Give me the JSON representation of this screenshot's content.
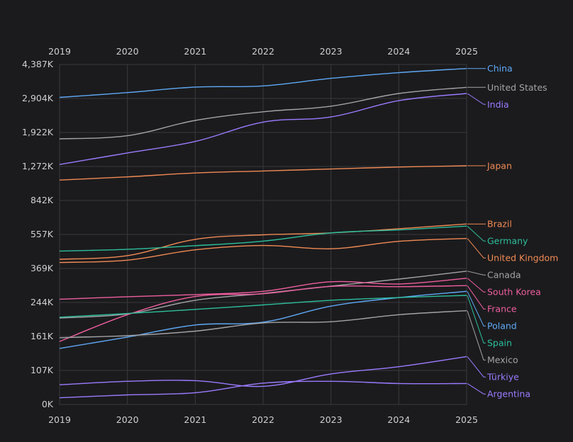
{
  "chart_data": {
    "type": "line",
    "title": "",
    "xlabel": "",
    "ylabel": "",
    "x": [
      2019,
      2020,
      2021,
      2022,
      2023,
      2024,
      2025
    ],
    "x_tick_labels": [
      "2019",
      "2020",
      "2021",
      "2022",
      "2023",
      "2024",
      "2025"
    ],
    "y_tick_labels": [
      "0K",
      "107K",
      "161K",
      "244K",
      "369K",
      "557K",
      "842K",
      "1,272K",
      "1,922K",
      "2,904K",
      "4,387K"
    ],
    "y_tick_values": [
      0,
      107,
      161,
      244,
      369,
      557,
      842,
      1272,
      1922,
      2904,
      4387
    ],
    "ylim": [
      0,
      4387
    ],
    "y_scale": "nonlinear (ticks evenly spaced)",
    "grid": true,
    "legend": "right end labels",
    "series": [
      {
        "name": "China",
        "color": "#5fa8f5",
        "values": [
          2950,
          3160,
          3400,
          3450,
          3780,
          4030,
          4210
        ]
      },
      {
        "name": "United States",
        "color": "#a3a3a8",
        "values": [
          1800,
          1860,
          2270,
          2520,
          2680,
          3120,
          3390
        ]
      },
      {
        "name": "India",
        "color": "#9b7bff",
        "values": [
          1310,
          1530,
          1750,
          2220,
          2370,
          2840,
          3120
        ]
      },
      {
        "name": "Japan",
        "color": "#f08a55",
        "values": [
          1100,
          1140,
          1190,
          1215,
          1240,
          1265,
          1285
        ]
      },
      {
        "name": "Brazil",
        "color": "#f08a55",
        "values": [
          420,
          440,
          530,
          555,
          570,
          605,
          645
        ]
      },
      {
        "name": "Germany",
        "color": "#2dbf9c",
        "values": [
          465,
          475,
          495,
          520,
          570,
          595,
          627
        ]
      },
      {
        "name": "United Kingdom",
        "color": "#f08a55",
        "values": [
          402,
          415,
          472,
          496,
          478,
          519,
          535
        ]
      },
      {
        "name": "Canada",
        "color": "#a3a3a8",
        "values": [
          206,
          216,
          252,
          277,
          304,
          330,
          359
        ]
      },
      {
        "name": "South Korea",
        "color": "#ee5e9f",
        "values": [
          256,
          265,
          273,
          285,
          320,
          312,
          333
        ]
      },
      {
        "name": "France",
        "color": "#ee5e9f",
        "values": [
          153,
          214,
          266,
          276,
          303,
          302,
          306
        ]
      },
      {
        "name": "Poland",
        "color": "#5fa8f5",
        "values": [
          142,
          160,
          189,
          196,
          235,
          262,
          285
        ]
      },
      {
        "name": "Spain",
        "color": "#2dbf9c",
        "values": [
          208,
          217,
          227,
          238,
          252,
          262,
          270
        ]
      },
      {
        "name": "Mexico",
        "color": "#a3a3a8",
        "values": [
          159,
          163,
          174,
          194,
          197,
          214,
          224
        ]
      },
      {
        "name": "Türkiye",
        "color": "#9b7bff",
        "values": [
          62,
          73,
          75,
          57,
          96,
          113,
          129
        ]
      },
      {
        "name": "Argentina",
        "color": "#9b7bff",
        "values": [
          21,
          30,
          37,
          67,
          73,
          66,
          66
        ]
      }
    ]
  }
}
